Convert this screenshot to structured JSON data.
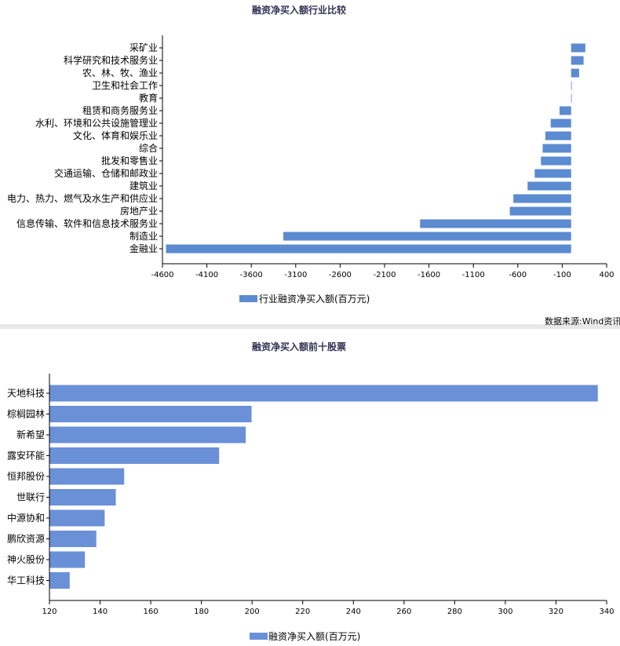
{
  "chart_data": [
    {
      "type": "bar",
      "orientation": "horizontal",
      "title": "融资净买入额行业比较",
      "categories": [
        "采矿业",
        "科学研究和技术服务业",
        "农、林、牧、渔业",
        "卫生和社会工作",
        "教育",
        "租赁和商务服务业",
        "水利、环境和公共设施管理业",
        "文化、体育和娱乐业",
        "综合",
        "批发和零售业",
        "交通运输、仓储和邮政业",
        "建筑业",
        "电力、热力、燃气及水生产和供应业",
        "房地产业",
        "信息传输、软件和信息技术服务业",
        "制造业",
        "金融业"
      ],
      "series": [
        {
          "name": "行业融资净买入额(百万元)",
          "values": [
            160,
            140,
            90,
            5,
            3,
            -130,
            -230,
            -290,
            -320,
            -340,
            -410,
            -490,
            -650,
            -690,
            -1700,
            -3240,
            -4560
          ]
        }
      ],
      "xlim": [
        -4600,
        400
      ],
      "xticks": [
        -4600,
        -4100,
        -3600,
        -3100,
        -2600,
        -2100,
        -1600,
        -1100,
        -600,
        -100,
        400
      ],
      "legend_position": "bottom",
      "grid": false,
      "color": "#5B8BD0"
    },
    {
      "type": "bar",
      "orientation": "horizontal",
      "title": "融资净买入额前十股票",
      "categories": [
        "天地科技",
        "棕榈园林",
        "新希望",
        "露安环能",
        "恒邦股份",
        "世联行",
        "中源协和",
        "鹏欣资源",
        "神火股份",
        "华工科技"
      ],
      "series": [
        {
          "name": "融资净买入额(百万元)",
          "values": [
            336.5,
            199.8,
            197.5,
            187,
            149.5,
            146.2,
            141.8,
            138.5,
            134,
            128
          ]
        }
      ],
      "xlim": [
        120,
        340
      ],
      "xticks": [
        120,
        140,
        160,
        180,
        200,
        220,
        240,
        260,
        280,
        300,
        320,
        340
      ],
      "legend_position": "bottom",
      "grid": false,
      "color": "#6A90D8"
    }
  ],
  "source_text": "数据来源:Wind资讯"
}
